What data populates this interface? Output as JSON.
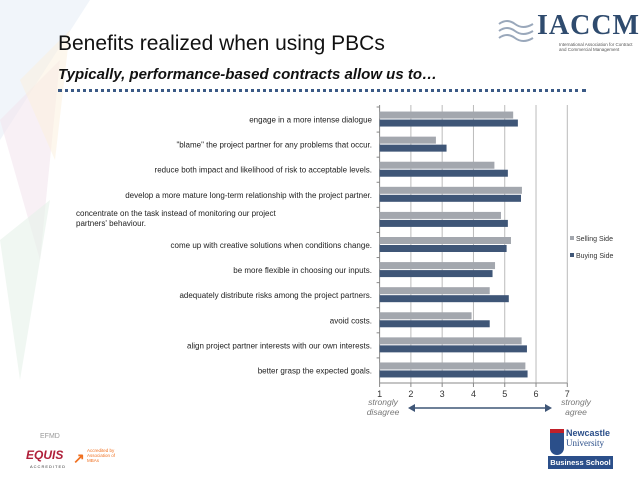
{
  "header": {
    "title": "Benefits realized when using PBCs",
    "subtitle": "Typically, performance-based contracts allow us to…",
    "logo_text": "IACCM",
    "logo_subtext": "International Association for Contract and Commercial Management"
  },
  "footer": {
    "efmd": "EFMD",
    "equis": "EQUIS",
    "equis_sub": "ACCREDITED",
    "amba": "Accredited by Association of MBAs",
    "newcastle_line1": "Newcastle",
    "newcastle_line2": "University",
    "business_school": "Business School"
  },
  "chart_data": {
    "type": "bar",
    "orientation": "horizontal",
    "categories": [
      "engage in a more intense dialogue",
      "\"blame\" the project partner for any problems that occur.",
      "reduce both impact and likelihood of risk to acceptable levels.",
      "develop a more mature long-term relationship with the project partner.",
      "concentrate on the task instead of monitoring our project partners' behaviour.",
      "come up with creative solutions when conditions change.",
      "be more flexible in choosing our inputs.",
      "adequately distribute risks among the project partners.",
      "avoid costs.",
      "align project partner interests with our own interests.",
      "better grasp the expected goals."
    ],
    "series": [
      {
        "name": "Selling Side",
        "color": "#a3a7ae",
        "values": [
          5.27,
          2.8,
          4.67,
          5.55,
          4.88,
          5.2,
          4.69,
          4.52,
          3.94,
          5.54,
          5.66
        ]
      },
      {
        "name": "Buying Side",
        "color": "#3f5677",
        "values": [
          5.42,
          3.14,
          5.1,
          5.52,
          5.1,
          5.06,
          4.61,
          5.13,
          4.52,
          5.71,
          5.73
        ]
      }
    ],
    "xlim": [
      1,
      7
    ],
    "xticks": [
      "1",
      "2",
      "3",
      "4",
      "5",
      "6",
      "7"
    ],
    "x_left_label": "strongly disagree",
    "x_right_label": "strongly agree",
    "grid": true,
    "legend": "right"
  }
}
